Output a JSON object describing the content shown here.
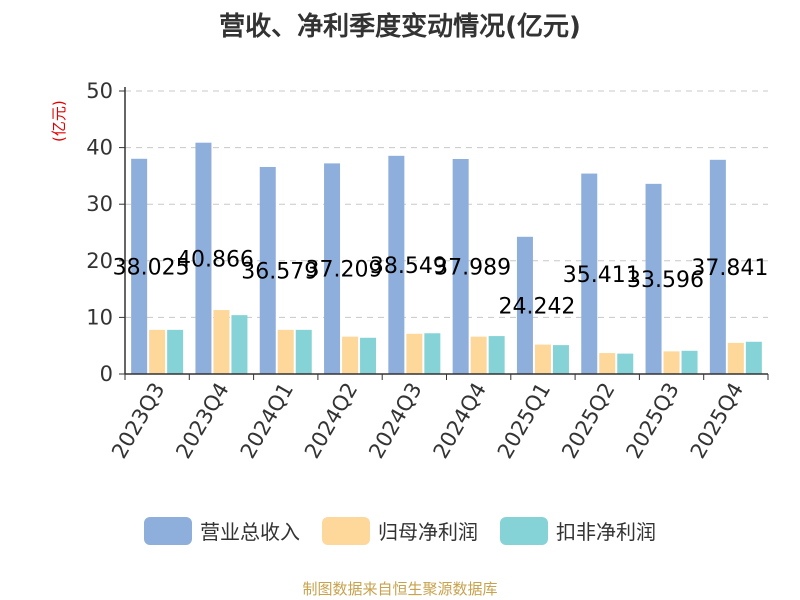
{
  "chart_data": {
    "type": "bar",
    "title": "营收、净利季度变动情况(亿元)",
    "yunit": "(亿元)",
    "ylim": [
      0,
      50
    ],
    "yticks": [
      0,
      10,
      20,
      30,
      40,
      50
    ],
    "grid": true,
    "legend_position": "bottom",
    "categories": [
      "2023Q3",
      "2023Q4",
      "2024Q1",
      "2024Q2",
      "2024Q3",
      "2024Q4",
      "2025Q1",
      "2025Q2",
      "2025Q3",
      "2025Q4"
    ],
    "series": [
      {
        "name": "营业总收入",
        "color": "#8eaedb",
        "values": [
          38.025,
          40.866,
          36.579,
          37.209,
          38.549,
          37.989,
          24.242,
          35.411,
          33.596,
          37.841
        ],
        "labels": [
          "38.025",
          "40.866",
          "36.579",
          "37.209",
          "38.549",
          "37.989",
          "24.242",
          "35.411",
          "33.596",
          "37.841"
        ]
      },
      {
        "name": "归母净利润",
        "color": "#fdd89a",
        "values": [
          7.8,
          11.3,
          7.8,
          6.6,
          7.1,
          6.6,
          5.2,
          3.7,
          4.0,
          5.5
        ]
      },
      {
        "name": "扣非净利润",
        "color": "#85d3d6",
        "values": [
          7.8,
          10.4,
          7.8,
          6.4,
          7.2,
          6.7,
          5.1,
          3.6,
          4.1,
          5.7
        ]
      }
    ],
    "source": "制图数据来自恒生聚源数据库"
  }
}
